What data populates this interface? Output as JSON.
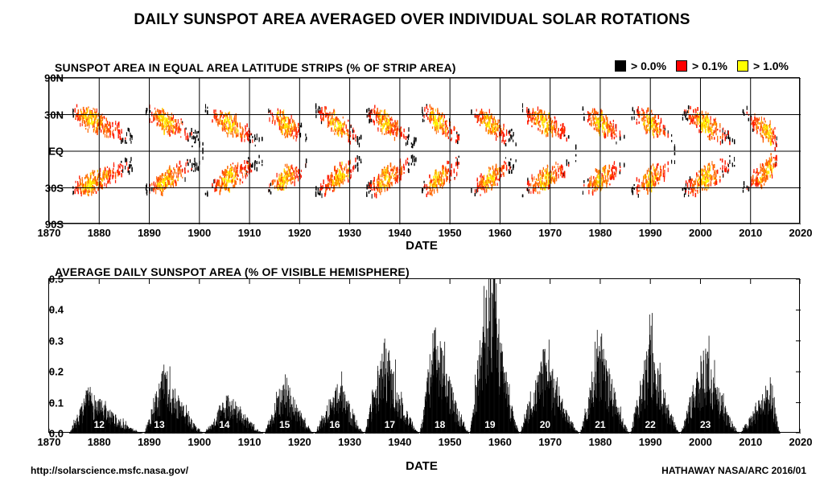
{
  "title": "DAILY SUNSPOT AREA AVERAGED OVER INDIVIDUAL SOLAR ROTATIONS",
  "footer_left": "http://solarscience.msfc.nasa.gov/",
  "footer_right": "HATHAWAY   NASA/ARC   2016/01",
  "x_axis": {
    "min": 1870,
    "max": 2020,
    "step": 10,
    "label": "DATE",
    "ticks": [
      1870,
      1880,
      1890,
      1900,
      1910,
      1920,
      1930,
      1940,
      1950,
      1960,
      1970,
      1980,
      1990,
      2000,
      2010,
      2020
    ],
    "label_fontsize": 15,
    "tick_fontsize": 13
  },
  "butterfly": {
    "subtitle": "SUNSPOT AREA IN EQUAL AREA LATITUDE STRIPS (% OF STRIP AREA)",
    "legend": [
      {
        "color": "#000000",
        "label": "> 0.0%"
      },
      {
        "color": "#ff0000",
        "label": "> 0.1%"
      },
      {
        "color": "#ffff00",
        "label": "> 1.0%"
      }
    ],
    "y_ticks": [
      {
        "v": 90,
        "label": "90N"
      },
      {
        "v": 30,
        "label": "30N"
      },
      {
        "v": 0,
        "label": "EQ"
      },
      {
        "v": -30,
        "label": "30S"
      },
      {
        "v": -90,
        "label": "90S"
      }
    ],
    "y_min": -90,
    "y_max": 90,
    "grid_y": [
      90,
      30,
      0,
      -30,
      -90
    ],
    "colors": {
      "low": "#000000",
      "mid": "#ff1a00",
      "mid2": "#ff6600",
      "high": "#ffd400",
      "high2": "#ffff00"
    },
    "cycles": [
      {
        "start": 1874,
        "max": 1878,
        "end": 1889
      },
      {
        "start": 1889,
        "max": 1893,
        "end": 1901
      },
      {
        "start": 1901,
        "max": 1906,
        "end": 1913
      },
      {
        "start": 1913,
        "max": 1917,
        "end": 1923
      },
      {
        "start": 1923,
        "max": 1928,
        "end": 1933
      },
      {
        "start": 1933,
        "max": 1937,
        "end": 1944
      },
      {
        "start": 1944,
        "max": 1947,
        "end": 1954
      },
      {
        "start": 1954,
        "max": 1958,
        "end": 1964
      },
      {
        "start": 1964,
        "max": 1969,
        "end": 1976
      },
      {
        "start": 1976,
        "max": 1980,
        "end": 1986
      },
      {
        "start": 1986,
        "max": 1990,
        "end": 1996
      },
      {
        "start": 1996,
        "max": 2001,
        "end": 2008
      },
      {
        "start": 2008,
        "max": 2014,
        "end": 2016
      }
    ]
  },
  "area_chart": {
    "subtitle": "AVERAGE DAILY SUNSPOT AREA (% OF VISIBLE HEMISPHERE)",
    "y_min": 0,
    "y_max": 0.5,
    "y_step": 0.1,
    "y_ticks": [
      0.0,
      0.1,
      0.2,
      0.3,
      0.4,
      0.5
    ],
    "bar_color": "#000000",
    "cycle_labels": [
      {
        "num": "12",
        "x": 1880
      },
      {
        "num": "13",
        "x": 1892
      },
      {
        "num": "14",
        "x": 1905
      },
      {
        "num": "15",
        "x": 1917
      },
      {
        "num": "16",
        "x": 1927
      },
      {
        "num": "17",
        "x": 1938
      },
      {
        "num": "18",
        "x": 1948
      },
      {
        "num": "19",
        "x": 1958
      },
      {
        "num": "20",
        "x": 1969
      },
      {
        "num": "21",
        "x": 1980
      },
      {
        "num": "22",
        "x": 1990
      },
      {
        "num": "23",
        "x": 2001
      },
      {
        "num": "",
        "x": 2014
      }
    ],
    "cycles": [
      {
        "start": 1874,
        "max": 1878,
        "end": 1889,
        "peak": 0.12
      },
      {
        "start": 1889,
        "max": 1893,
        "end": 1901,
        "peak": 0.18
      },
      {
        "start": 1901,
        "max": 1906,
        "end": 1913,
        "peak": 0.11
      },
      {
        "start": 1913,
        "max": 1917,
        "end": 1923,
        "peak": 0.16
      },
      {
        "start": 1923,
        "max": 1928,
        "end": 1933,
        "peak": 0.15
      },
      {
        "start": 1933,
        "max": 1937,
        "end": 1944,
        "peak": 0.25
      },
      {
        "start": 1944,
        "max": 1947,
        "end": 1954,
        "peak": 0.3
      },
      {
        "start": 1954,
        "max": 1958,
        "end": 1964,
        "peak": 0.49
      },
      {
        "start": 1964,
        "max": 1969,
        "end": 1976,
        "peak": 0.23
      },
      {
        "start": 1976,
        "max": 1980,
        "end": 1986,
        "peak": 0.27
      },
      {
        "start": 1986,
        "max": 1990,
        "end": 1996,
        "peak": 0.27
      },
      {
        "start": 1996,
        "max": 2001,
        "end": 2008,
        "peak": 0.23
      },
      {
        "start": 2008,
        "max": 2014,
        "end": 2016,
        "peak": 0.15
      }
    ]
  }
}
